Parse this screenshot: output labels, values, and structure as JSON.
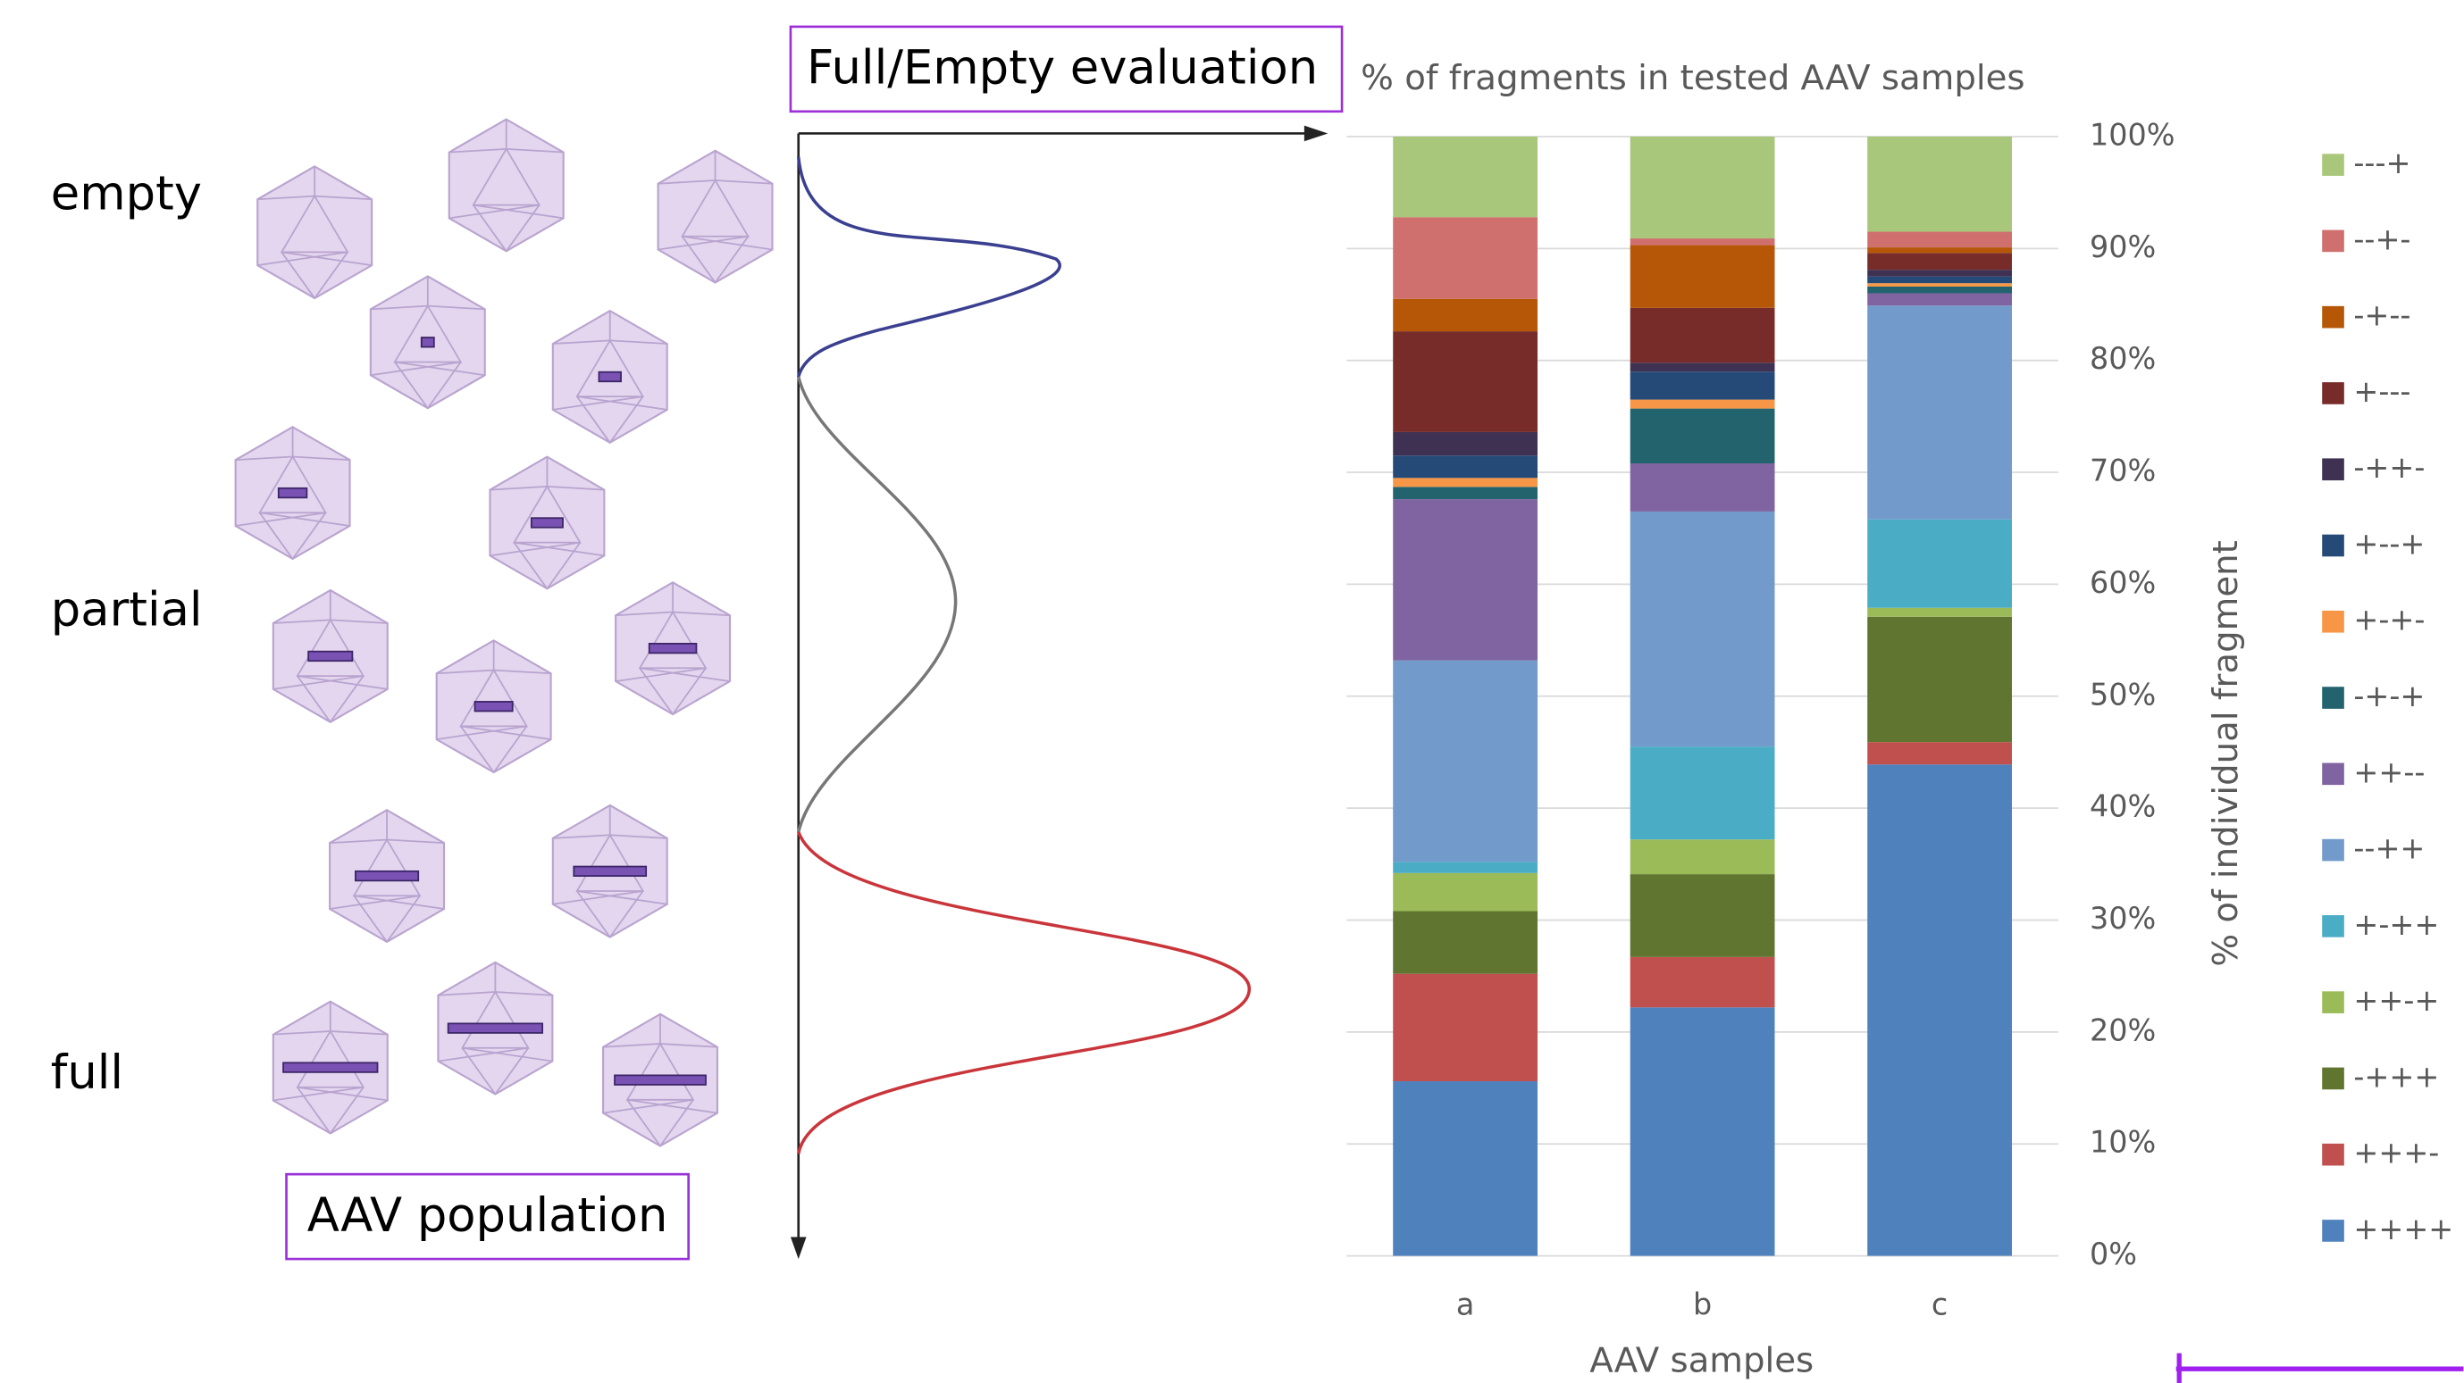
{
  "diagram": {
    "labels": [
      "empty",
      "partial",
      "full"
    ],
    "population_label": "AAV population",
    "evaluation_label": "Full/Empty evaluation"
  },
  "chart_data": {
    "type": "stacked_bar",
    "title": "% of fragments in tested AAV samples",
    "x_label": "AAV samples",
    "y_label": "% of individual fragment",
    "categories": [
      "a",
      "b",
      "c"
    ],
    "ylim": [
      0,
      100
    ],
    "yticks": [
      {
        "value": 0,
        "label": "0%"
      },
      {
        "value": 10,
        "label": "10%"
      },
      {
        "value": 20,
        "label": "20%"
      },
      {
        "value": 30,
        "label": "30%"
      },
      {
        "value": 40,
        "label": "40%"
      },
      {
        "value": 50,
        "label": "50%"
      },
      {
        "value": 60,
        "label": "60%"
      },
      {
        "value": 70,
        "label": "70%"
      },
      {
        "value": 80,
        "label": "80%"
      },
      {
        "value": 90,
        "label": "90%"
      },
      {
        "value": 100,
        "label": "100%"
      }
    ],
    "grid": true,
    "legend": "right",
    "series": [
      {
        "name": "++++",
        "color": "#4f81bd",
        "values": [
          15.6,
          22.2,
          43.9
        ]
      },
      {
        "name": "+++-",
        "color": "#c0504d",
        "values": [
          9.6,
          4.5,
          2.0
        ]
      },
      {
        "name": "-+++",
        "color": "#5f7530",
        "values": [
          5.6,
          7.4,
          11.2
        ]
      },
      {
        "name": "++-+",
        "color": "#9bbb59",
        "values": [
          3.4,
          3.1,
          0.8
        ]
      },
      {
        "name": "+-++",
        "color": "#4bacc6",
        "values": [
          1.0,
          8.3,
          7.9
        ]
      },
      {
        "name": "--++",
        "color": "#729aca",
        "values": [
          18.0,
          21.0,
          19.1
        ]
      },
      {
        "name": "++--",
        "color": "#8064a2",
        "values": [
          14.4,
          4.3,
          1.1
        ]
      },
      {
        "name": "-+-+",
        "color": "#23636e",
        "values": [
          1.1,
          4.9,
          0.6
        ]
      },
      {
        "name": "+-+-",
        "color": "#f79646",
        "values": [
          0.8,
          0.8,
          0.3
        ]
      },
      {
        "name": "+--+",
        "color": "#254a77",
        "values": [
          2.0,
          2.5,
          0.6
        ]
      },
      {
        "name": "-++-",
        "color": "#3f3151",
        "values": [
          2.1,
          0.8,
          0.6
        ]
      },
      {
        "name": "+---",
        "color": "#772c2a",
        "values": [
          9.0,
          4.9,
          1.5
        ]
      },
      {
        "name": "-+--",
        "color": "#b65708",
        "values": [
          2.9,
          5.6,
          0.5
        ]
      },
      {
        "name": "--+-",
        "color": "#d0706e",
        "values": [
          7.3,
          0.6,
          1.4
        ]
      },
      {
        "name": "---+",
        "color": "#a9c77a",
        "values": [
          7.2,
          9.1,
          8.5
        ]
      }
    ]
  }
}
